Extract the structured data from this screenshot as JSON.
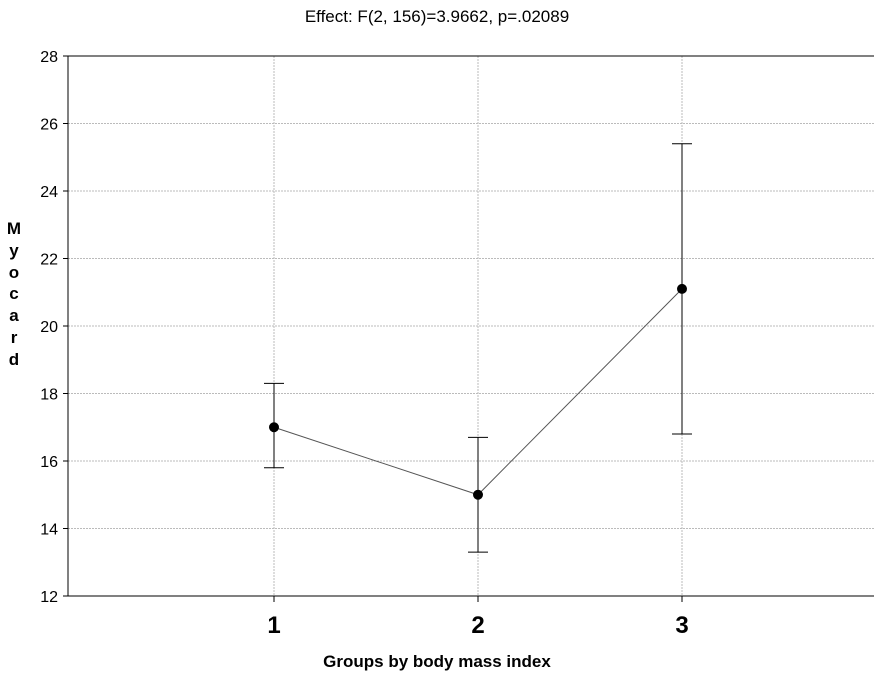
{
  "chart_data": {
    "type": "line",
    "title": "Effect: F(2, 156)=3.9662, p=.02089",
    "xlabel": "Groups by body mass index",
    "ylabel": "Myocard",
    "categories": [
      "1",
      "2",
      "3"
    ],
    "series": [
      {
        "values": [
          17.0,
          15.0,
          21.1
        ],
        "lower": [
          15.8,
          13.3,
          16.8
        ],
        "upper": [
          18.3,
          16.7,
          25.4
        ]
      }
    ],
    "ylim": [
      12,
      28
    ],
    "yticks": [
      12,
      14,
      16,
      18,
      20,
      22,
      24,
      26,
      28
    ],
    "grid": true,
    "legend": "none",
    "colors": {
      "line": "#555555",
      "marker": "#000000",
      "grid": "#bbbbbb",
      "axis": "#000000"
    }
  }
}
